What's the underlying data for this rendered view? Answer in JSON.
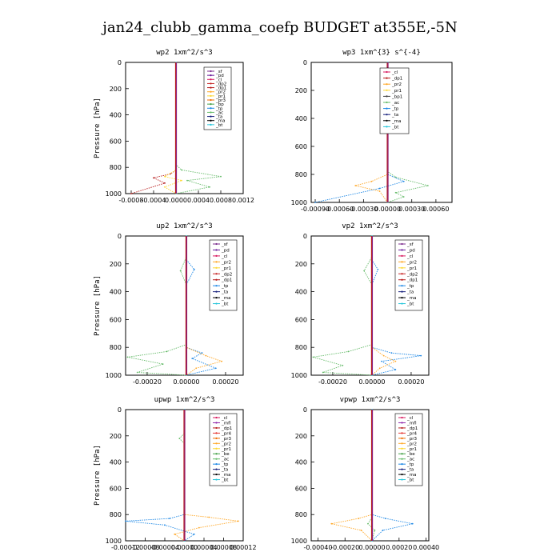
{
  "title": "jan24_clubb_gamma_coefp  BUDGET at355E,-5N",
  "colors": {
    "_sf": "#7b2d8e",
    "_pd": "#6a1b9a",
    "_cl": "#d81b60",
    "_dp2": "#c62828",
    "_dp1": "#b71c1c",
    "_pr2": "#ffa726",
    "_pr1": "#fdd835",
    "_bp": "#43a047",
    "_ac": "#66bb6a",
    "_tp": "#1e88e5",
    "_ta": "#1a237e",
    "_ma": "#000000",
    "_bt": "#26c6da",
    "_mfl": "#8e24aa",
    "_pr4": "#e53935",
    "_pr3": "#ef6c00",
    "_dp4": "#c62828",
    "_be": "#43a047",
    "_pr6": "#f57f17"
  },
  "chart_data": [
    {
      "type": "line",
      "title": "wp2  1xm^2/s^3",
      "ylabel": "Pressure [hPa]",
      "ylim": [
        1000,
        0
      ],
      "xlim": [
        -0.0009,
        0.0012
      ],
      "xticks": [
        "-0.0008",
        "-0.0004",
        "0.0000",
        "0.0004",
        "0.0008",
        "0.0012"
      ],
      "xtick_values": [
        -0.0008,
        -0.0004,
        0.0,
        0.0004,
        0.0008,
        0.0012
      ],
      "yticks": [
        0,
        200,
        400,
        600,
        800,
        1000
      ],
      "legend": [
        "_sf",
        "_pd",
        "_cl",
        "_dp2",
        "_dp1",
        "_pr2",
        "_pr1",
        "_pr3",
        "_bp",
        "_tp",
        "_ac",
        "_ta",
        "_ma",
        "_bt"
      ],
      "series": [
        {
          "name": "_ac",
          "points": [
            [
              0,
              0
            ],
            [
              0,
              780
            ],
            [
              0.0001,
              820
            ],
            [
              0.0008,
              870
            ],
            [
              0.0002,
              900
            ],
            [
              0.0006,
              950
            ],
            [
              0,
              1000
            ]
          ]
        },
        {
          "name": "_dp1",
          "points": [
            [
              0,
              0
            ],
            [
              0,
              820
            ],
            [
              -0.0001,
              850
            ],
            [
              -0.0004,
              880
            ],
            [
              -0.0002,
              920
            ],
            [
              -0.0008,
              1000
            ]
          ]
        },
        {
          "name": "_pr1",
          "points": [
            [
              0,
              0
            ],
            [
              0,
              820
            ],
            [
              -0.0002,
              870
            ],
            [
              0.0001,
              900
            ],
            [
              -0.0002,
              950
            ],
            [
              0,
              1000
            ]
          ]
        },
        {
          "name": "_bt",
          "points": [
            [
              0,
              0
            ],
            [
              0,
              1000
            ]
          ]
        }
      ]
    },
    {
      "type": "line",
      "title": "wp3  1xm^{3} s^{-4}",
      "ylabel": "",
      "ylim": [
        1000,
        0
      ],
      "xlim": [
        -0.00095,
        0.0008
      ],
      "xticks": [
        "-0.00090",
        "-0.00060",
        "-0.00030",
        "0.00000",
        "0.00030",
        "0.00060"
      ],
      "xtick_values": [
        -0.0009,
        -0.0006,
        -0.0003,
        0.0,
        0.0003,
        0.0006
      ],
      "yticks": [
        0,
        200,
        400,
        600,
        800,
        1000
      ],
      "legend": [
        "_cl",
        "_dp1",
        "_pr2",
        "_pr1",
        "_bp1",
        "_ac",
        "_tp",
        "_ta",
        "_ma",
        "_bt"
      ],
      "series": [
        {
          "name": "_ac",
          "points": [
            [
              0,
              0
            ],
            [
              0,
              780
            ],
            [
              0.0001,
              820
            ],
            [
              0.0005,
              880
            ],
            [
              0.0001,
              930
            ],
            [
              0.0002,
              960
            ],
            [
              0,
              1000
            ]
          ]
        },
        {
          "name": "_pr2",
          "points": [
            [
              0,
              0
            ],
            [
              0,
              800
            ],
            [
              -0.0002,
              850
            ],
            [
              -0.0004,
              880
            ],
            [
              -0.0001,
              920
            ],
            [
              0,
              1000
            ]
          ]
        },
        {
          "name": "_tp",
          "points": [
            [
              0,
              0
            ],
            [
              0,
              800
            ],
            [
              0.0002,
              850
            ],
            [
              -0.0001,
              900
            ],
            [
              -0.0009,
              1000
            ]
          ]
        },
        {
          "name": "_bt",
          "points": [
            [
              0,
              0
            ],
            [
              0,
              1000
            ]
          ]
        }
      ]
    },
    {
      "type": "line",
      "title": "up2  1xm^2/s^3",
      "ylabel": "Pressure [hPa]",
      "ylim": [
        1000,
        0
      ],
      "xlim": [
        -0.00031,
        0.00029
      ],
      "xticks": [
        "-0.00020",
        "0.00000",
        "0.00020"
      ],
      "xtick_values": [
        -0.0002,
        0.0,
        0.0002
      ],
      "yticks": [
        0,
        200,
        400,
        600,
        800,
        1000
      ],
      "legend": [
        "_sf",
        "_pd",
        "_cl",
        "_pr2",
        "_pr1",
        "_dp2",
        "_dp1",
        "_tp",
        "_ta",
        "_ma",
        "_bt"
      ],
      "series": [
        {
          "name": "_ac",
          "points": [
            [
              0,
              0
            ],
            [
              0,
              150
            ],
            [
              -3e-05,
              250
            ],
            [
              0,
              350
            ],
            [
              0,
              780
            ],
            [
              -0.0001,
              830
            ],
            [
              -0.0003,
              870
            ],
            [
              -0.00012,
              920
            ],
            [
              -0.00025,
              980
            ],
            [
              0,
              1000
            ]
          ]
        },
        {
          "name": "_tp",
          "points": [
            [
              0,
              0
            ],
            [
              0,
              170
            ],
            [
              4e-05,
              240
            ],
            [
              0,
              350
            ],
            [
              0,
              800
            ],
            [
              8e-05,
              840
            ],
            [
              3e-05,
              880
            ],
            [
              0.00015,
              950
            ],
            [
              0,
              1000
            ]
          ]
        },
        {
          "name": "_pr2",
          "points": [
            [
              0,
              0
            ],
            [
              0,
              800
            ],
            [
              0.0001,
              860
            ],
            [
              0.00018,
              900
            ],
            [
              5e-05,
              950
            ],
            [
              0,
              1000
            ]
          ]
        },
        {
          "name": "_bt",
          "points": [
            [
              0,
              0
            ],
            [
              0,
              1000
            ]
          ]
        }
      ]
    },
    {
      "type": "line",
      "title": "vp2  1xm^2/s^3",
      "ylabel": "",
      "ylim": [
        1000,
        0
      ],
      "xlim": [
        -0.00031,
        0.00029
      ],
      "xticks": [
        "-0.00020",
        "0.00000",
        "0.00020"
      ],
      "xtick_values": [
        -0.0002,
        0.0,
        0.0002
      ],
      "yticks": [
        0,
        200,
        400,
        600,
        800,
        1000
      ],
      "legend": [
        "_sf",
        "_pd",
        "_cl",
        "_pr2",
        "_pr1",
        "_dp2",
        "_dp1",
        "_tp",
        "_ta",
        "_ma",
        "_bt"
      ],
      "series": [
        {
          "name": "_ac",
          "points": [
            [
              0,
              0
            ],
            [
              0,
              150
            ],
            [
              -4e-05,
              250
            ],
            [
              0,
              350
            ],
            [
              0,
              780
            ],
            [
              -0.00012,
              830
            ],
            [
              -0.0003,
              870
            ],
            [
              -0.00015,
              930
            ],
            [
              -0.00025,
              980
            ],
            [
              0,
              1000
            ]
          ]
        },
        {
          "name": "_tp",
          "points": [
            [
              0,
              0
            ],
            [
              0,
              170
            ],
            [
              3e-05,
              240
            ],
            [
              0,
              350
            ],
            [
              0,
              800
            ],
            [
              0.0001,
              840
            ],
            [
              0.00025,
              860
            ],
            [
              5e-05,
              900
            ],
            [
              0.00012,
              960
            ],
            [
              0,
              1000
            ]
          ]
        },
        {
          "name": "_pr2",
          "points": [
            [
              0,
              0
            ],
            [
              0,
              800
            ],
            [
              6e-05,
              860
            ],
            [
              0.00012,
              900
            ],
            [
              4e-05,
              950
            ],
            [
              0,
              1000
            ]
          ]
        },
        {
          "name": "_bt",
          "points": [
            [
              0,
              0
            ],
            [
              0,
              1000
            ]
          ]
        }
      ]
    },
    {
      "type": "line",
      "title": "upwp  1xm^2/s^3",
      "ylabel": "Pressure [hPa]",
      "ylim": [
        1000,
        0
      ],
      "xlim": [
        -0.00012,
        0.00012
      ],
      "xticks": [
        "-0.00012",
        "-0.00008",
        "-0.00004",
        "0.00000",
        "0.00004",
        "0.00008",
        "0.00012"
      ],
      "xtick_values": [
        -0.00012,
        -8e-05,
        -4e-05,
        0.0,
        4e-05,
        8e-05,
        0.00012
      ],
      "yticks": [
        0,
        200,
        400,
        600,
        800,
        1000
      ],
      "legend": [
        "_cl",
        "_mfl",
        "_dp1",
        "_pr4",
        "_pr3",
        "_pr2",
        "_pr1",
        "_be",
        "_ac",
        "_tp",
        "_ta",
        "_ma",
        "_bt"
      ],
      "series": [
        {
          "name": "_pr2",
          "points": [
            [
              0,
              0
            ],
            [
              0,
              800
            ],
            [
              5e-05,
              820
            ],
            [
              0.00011,
              850
            ],
            [
              3e-05,
              900
            ],
            [
              -2e-05,
              950
            ],
            [
              0,
              1000
            ]
          ]
        },
        {
          "name": "_tp",
          "points": [
            [
              0,
              0
            ],
            [
              0,
              800
            ],
            [
              -3e-05,
              830
            ],
            [
              -0.00012,
              850
            ],
            [
              -4e-05,
              880
            ],
            [
              2e-05,
              950
            ],
            [
              0,
              1000
            ]
          ]
        },
        {
          "name": "_ac",
          "points": [
            [
              0,
              0
            ],
            [
              0,
              180
            ],
            [
              -1e-05,
              220
            ],
            [
              0,
              260
            ],
            [
              0,
              1000
            ]
          ]
        },
        {
          "name": "_bt",
          "points": [
            [
              0,
              0
            ],
            [
              0,
              1000
            ]
          ]
        }
      ]
    },
    {
      "type": "line",
      "title": "vpwp  1xm^2/s^3",
      "ylabel": "",
      "ylim": [
        1000,
        0
      ],
      "xlim": [
        -0.00045,
        0.00042
      ],
      "xticks": [
        "-0.00040",
        "-0.00020",
        "0.00000",
        "0.00020",
        "0.00040"
      ],
      "xtick_values": [
        -0.0004,
        -0.0002,
        0.0,
        0.0002,
        0.0004
      ],
      "yticks": [
        0,
        200,
        400,
        600,
        800,
        1000
      ],
      "legend": [
        "_cl",
        "_mfl",
        "_dp1",
        "_pr4",
        "_pr3",
        "_pr2",
        "_pr1",
        "_be",
        "_ac",
        "_tp",
        "_ta",
        "_ma",
        "_bt"
      ],
      "series": [
        {
          "name": "_pr2",
          "points": [
            [
              0,
              0
            ],
            [
              0,
              800
            ],
            [
              -0.0001,
              830
            ],
            [
              -0.0003,
              870
            ],
            [
              -8e-05,
              920
            ],
            [
              0,
              1000
            ]
          ]
        },
        {
          "name": "_tp",
          "points": [
            [
              0,
              0
            ],
            [
              0,
              800
            ],
            [
              0.0001,
              830
            ],
            [
              0.0003,
              870
            ],
            [
              8e-05,
              920
            ],
            [
              0,
              1000
            ]
          ]
        },
        {
          "name": "_ac",
          "points": [
            [
              0,
              0
            ],
            [
              0,
              820
            ],
            [
              -3e-05,
              870
            ],
            [
              2e-05,
              920
            ],
            [
              0,
              1000
            ]
          ]
        },
        {
          "name": "_bt",
          "points": [
            [
              0,
              0
            ],
            [
              0,
              1000
            ]
          ]
        }
      ]
    }
  ]
}
